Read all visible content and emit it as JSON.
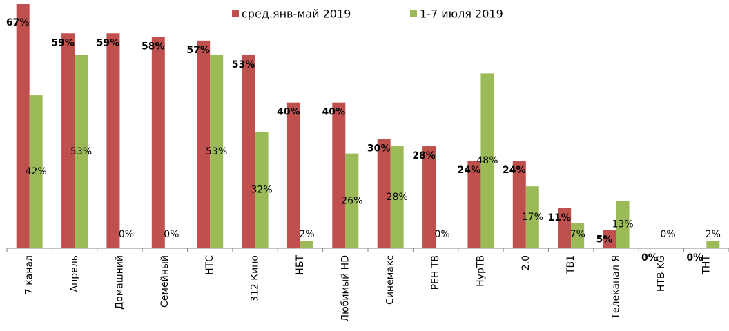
{
  "chart_data": {
    "type": "bar",
    "categories": [
      "7 канал",
      "Апрель",
      "Домашний",
      "Семейный",
      "НТС",
      "312 Кино",
      "НБТ",
      "Любимый HD",
      "Синемакс",
      "РЕН ТВ",
      "НурТВ",
      "2.0",
      "ТВ1",
      "Телеканал Я",
      "НТВ KG",
      "ТНТ"
    ],
    "series": [
      {
        "name": "сред.янв-май 2019",
        "color": "#c0504d",
        "values": [
          67,
          59,
          59,
          58,
          57,
          53,
          40,
          40,
          30,
          28,
          24,
          24,
          11,
          5,
          0,
          0
        ],
        "value_labels": [
          "67%",
          "59%",
          "59%",
          "58%",
          "57%",
          "53%",
          "40%",
          "40%",
          "30%",
          "28%",
          "24%",
          "24%",
          "11%",
          "5%",
          "0%",
          "0%"
        ]
      },
      {
        "name": "1-7 июля 2019",
        "color": "#9bbb59",
        "values": [
          42,
          53,
          0,
          0,
          53,
          32,
          2,
          26,
          28,
          0,
          48,
          17,
          7,
          13,
          0,
          2
        ],
        "value_labels": [
          "42%",
          "53%",
          "0%",
          "0%",
          "53%",
          "32%",
          "2%",
          "26%",
          "28%",
          "0%",
          "48%",
          "17%",
          "7%",
          "13%",
          "0%",
          "2%"
        ]
      }
    ],
    "ylim": [
      0,
      67
    ]
  }
}
